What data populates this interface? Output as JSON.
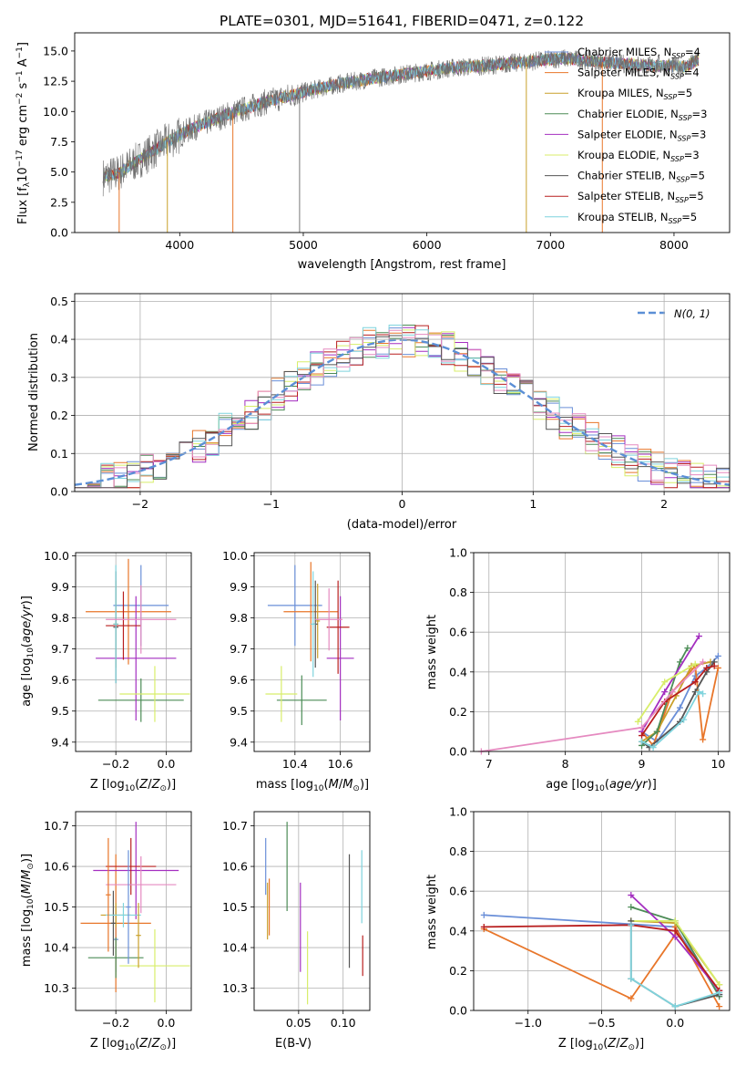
{
  "colors": {
    "Chabrier MILES": "#6a8fd8",
    "Salpeter MILES": "#e8762a",
    "Kroupa MILES": "#c9a02a",
    "Chabrier ELODIE": "#4c8c56",
    "Salpeter ELODIE": "#a42fc0",
    "Kroupa ELODIE": "#d8ee6a",
    "Chabrier STELIB": "#555555",
    "Salpeter STELIB": "#b81e1e",
    "Kroupa STELIB": "#7fd4dd",
    "normal_curve": "#5b8fd6",
    "pink": "#e58ac0"
  },
  "chart_data": [
    {
      "type": "line",
      "title": "PLATE=0301, MJD=51641, FIBERID=0471, z=0.122",
      "xlabel": "wavelength [Angstrom, rest frame]",
      "ylabel": "Flux [f$_\\lambda$10$^{-17}$ erg cm$^{-2}$ s$^{-1}$ A$^{-1}$]",
      "xlim": [
        3150,
        8450
      ],
      "ylim": [
        0,
        16.5
      ],
      "xticks": [
        "4000",
        "5000",
        "6000",
        "7000",
        "8000"
      ],
      "yticks": [
        "0.0",
        "2.5",
        "5.0",
        "7.5",
        "10.0",
        "12.5",
        "15.0"
      ],
      "legend_position": "right",
      "series": [
        {
          "name": "Chabrier MILES, N$_{SSP}$=4"
        },
        {
          "name": "Salpeter MILES, N$_{SSP}$=4"
        },
        {
          "name": "Kroupa MILES, N$_{SSP}$=5"
        },
        {
          "name": "Chabrier ELODIE, N$_{SSP}$=3"
        },
        {
          "name": "Salpeter ELODIE, N$_{SSP}$=3"
        },
        {
          "name": "Kroupa ELODIE, N$_{SSP}$=3"
        },
        {
          "name": "Chabrier STELIB, N$_{SSP}$=5"
        },
        {
          "name": "Salpeter STELIB, N$_{SSP}$=5"
        },
        {
          "name": "Kroupa STELIB, N$_{SSP}$=5"
        }
      ],
      "continuum": {
        "x": [
          3380,
          3500,
          3700,
          3900,
          4100,
          4400,
          4700,
          5000,
          5300,
          5600,
          5900,
          6200,
          6500,
          6800,
          7100,
          7300,
          7500,
          7800,
          8100,
          8200
        ],
        "y": [
          4.6,
          4.9,
          6.2,
          7.5,
          8.6,
          9.8,
          10.8,
          11.6,
          12.3,
          12.8,
          13.2,
          13.6,
          13.8,
          14.1,
          14.4,
          14.2,
          14.0,
          13.8,
          13.7,
          14.3
        ]
      }
    },
    {
      "type": "line",
      "xlabel": "(data-model)/error",
      "ylabel": "Normed distribution",
      "xlim": [
        -2.5,
        2.5
      ],
      "ylim": [
        0,
        0.52
      ],
      "xticks": [
        "−2",
        "−1",
        "0",
        "1",
        "2"
      ],
      "yticks": [
        "0.0",
        "0.1",
        "0.2",
        "0.3",
        "0.4",
        "0.5"
      ],
      "grid": true,
      "legend_position": "top-right",
      "legend": "$\\mathcal{N}(0,1)$",
      "bin_width": 0.1
    },
    {
      "type": "scatter",
      "xlabel": "Z [log$_{10}$($Z/Z_\\odot$)]",
      "ylabel": "age  [log$_{10}$($age/yr$)]",
      "xlim": [
        -0.36,
        0.1
      ],
      "ylim": [
        9.37,
        10.01
      ],
      "xticks": [
        "−0.2",
        "0.0"
      ],
      "yticks": [
        "9.4",
        "9.5",
        "9.6",
        "9.7",
        "9.8",
        "9.9",
        "10.0"
      ],
      "series": [
        {
          "x": -0.1,
          "xerr": 0.11,
          "y": 9.84,
          "yerr": 0.13
        },
        {
          "x": -0.15,
          "xerr": 0.17,
          "y": 9.82,
          "yerr": 0.17
        },
        {
          "x": -0.2,
          "xerr": 0.01,
          "y": 9.78,
          "yerr": 0.14
        },
        {
          "x": -0.1,
          "xerr": 0.17,
          "y": 9.535,
          "yerr": 0.07
        },
        {
          "x": -0.12,
          "xerr": 0.16,
          "y": 9.67,
          "yerr": 0.2
        },
        {
          "x": -0.045,
          "xerr": 0.14,
          "y": 9.555,
          "yerr": 0.09
        },
        {
          "x": -0.2,
          "xerr": 0.01,
          "y": 9.77,
          "yerr": 0.18
        },
        {
          "x": -0.17,
          "xerr": 0.07,
          "y": 9.775,
          "yerr": 0.11
        },
        {
          "x": -0.2,
          "xerr": 0.01,
          "y": 9.78,
          "yerr": 0.19
        },
        {
          "x": -0.1,
          "xerr": 0.14,
          "y": 9.795,
          "yerr": 0.11
        }
      ]
    },
    {
      "type": "scatter",
      "xlabel": "mass [log$_{10}$($M/M_\\odot$)]",
      "xlim": [
        10.22,
        10.73
      ],
      "ylim": [
        9.37,
        10.01
      ],
      "xticks": [
        "10.4",
        "10.6"
      ],
      "yticks": [
        "9.4",
        "9.5",
        "9.6",
        "9.7",
        "9.8",
        "9.9",
        "10.0"
      ],
      "series": [
        {
          "x": 10.4,
          "xerr": 0.12,
          "y": 9.84,
          "yerr": 0.13
        },
        {
          "x": 10.47,
          "xerr": 0.12,
          "y": 9.82,
          "yerr": 0.16
        },
        {
          "x": 10.5,
          "xerr": 0.01,
          "y": 9.79,
          "yerr": 0.12
        },
        {
          "x": 10.43,
          "xerr": 0.11,
          "y": 9.535,
          "yerr": 0.08
        },
        {
          "x": 10.6,
          "xerr": 0.06,
          "y": 9.67,
          "yerr": 0.2
        },
        {
          "x": 10.34,
          "xerr": 0.07,
          "y": 9.555,
          "yerr": 0.09
        },
        {
          "x": 10.49,
          "xerr": 0.01,
          "y": 9.78,
          "yerr": 0.14
        },
        {
          "x": 10.59,
          "xerr": 0.05,
          "y": 9.77,
          "yerr": 0.15
        },
        {
          "x": 10.48,
          "xerr": 0.01,
          "y": 9.78,
          "yerr": 0.17
        },
        {
          "x": 10.55,
          "xerr": 0.06,
          "y": 9.795,
          "yerr": 0.1
        }
      ]
    },
    {
      "type": "line",
      "xlabel": "age  [log$_{10}$($age/yr$)]",
      "ylabel": "mass weight",
      "xlim": [
        6.8,
        10.15
      ],
      "ylim": [
        0,
        1.0
      ],
      "xticks": [
        "7",
        "8",
        "9",
        "10"
      ],
      "yticks": [
        "0.0",
        "0.2",
        "0.4",
        "0.6",
        "0.8",
        "1.0"
      ],
      "grid": true,
      "series": [
        {
          "x": [
            9.0,
            9.2,
            9.5,
            9.7,
            9.85,
            10.0
          ],
          "y": [
            0.1,
            0.05,
            0.22,
            0.38,
            0.42,
            0.48
          ]
        },
        {
          "x": [
            9.0,
            9.15,
            9.4,
            9.7,
            9.8,
            10.0
          ],
          "y": [
            0.1,
            0.03,
            0.3,
            0.43,
            0.06,
            0.42
          ]
        },
        {
          "x": [
            9.0,
            9.2,
            9.45,
            9.65,
            9.9
          ],
          "y": [
            0.05,
            0.1,
            0.28,
            0.43,
            0.45
          ]
        },
        {
          "x": [
            9.0,
            9.2,
            9.5,
            9.6
          ],
          "y": [
            0.03,
            0.1,
            0.45,
            0.52
          ]
        },
        {
          "x": [
            9.0,
            9.3,
            9.75
          ],
          "y": [
            0.1,
            0.3,
            0.58
          ]
        },
        {
          "x": [
            8.95,
            9.3,
            9.7
          ],
          "y": [
            0.15,
            0.35,
            0.44
          ]
        },
        {
          "x": [
            9.0,
            9.1,
            9.5,
            9.7,
            9.85,
            9.95
          ],
          "y": [
            0.05,
            0.02,
            0.15,
            0.3,
            0.4,
            0.45
          ]
        },
        {
          "x": [
            9.0,
            9.3,
            9.7,
            9.85,
            9.95
          ],
          "y": [
            0.08,
            0.25,
            0.35,
            0.42,
            0.43
          ]
        },
        {
          "x": [
            9.0,
            9.15,
            9.55,
            9.75,
            9.8
          ],
          "y": [
            0.05,
            0.02,
            0.16,
            0.3,
            0.29
          ]
        },
        {
          "x": [
            6.9,
            9.0,
            9.4,
            9.8
          ],
          "y": [
            0.0,
            0.12,
            0.3,
            0.45
          ]
        }
      ]
    },
    {
      "type": "scatter",
      "xlabel": "Z [log$_{10}$($Z/Z_\\odot$)]",
      "ylabel": "mass [log$_{10}$($M/M_\\odot$)]",
      "xlim": [
        -0.36,
        0.1
      ],
      "ylim": [
        10.245,
        10.735
      ],
      "xticks": [
        "−0.2",
        "0.0"
      ],
      "yticks": [
        "10.3",
        "10.4",
        "10.5",
        "10.6",
        "10.7"
      ],
      "series": [
        {
          "x": -0.2,
          "xerr": 0.01,
          "y": 10.42,
          "yerr": 0.08
        },
        {
          "x": -0.2,
          "xerr": 0.14,
          "y": 10.46,
          "yerr": 0.17
        },
        {
          "x": -0.2,
          "xerr": 0.06,
          "y": 10.48,
          "yerr": 0.03
        },
        {
          "x": -0.2,
          "xerr": 0.11,
          "y": 10.375,
          "yerr": 0.05
        },
        {
          "x": -0.12,
          "xerr": 0.17,
          "y": 10.59,
          "yerr": 0.12
        },
        {
          "x": -0.045,
          "xerr": 0.14,
          "y": 10.355,
          "yerr": 0.09
        },
        {
          "x": -0.21,
          "xerr": 0.01,
          "y": 10.46,
          "yerr": 0.08
        },
        {
          "x": -0.14,
          "xerr": 0.1,
          "y": 10.6,
          "yerr": 0.07
        },
        {
          "x": -0.17,
          "xerr": 0.07,
          "y": 10.48,
          "yerr": 0.03
        },
        {
          "x": -0.1,
          "xerr": 0.14,
          "y": 10.555,
          "yerr": 0.07
        },
        {
          "x": -0.15,
          "xerr": 0.01,
          "y": 10.5,
          "yerr": 0.14
        },
        {
          "x": -0.23,
          "xerr": 0.01,
          "y": 10.53,
          "yerr": 0.14
        },
        {
          "x": -0.11,
          "xerr": 0.01,
          "y": 10.43,
          "yerr": 0.08
        }
      ]
    },
    {
      "type": "scatter",
      "xlabel": "E(B-V)",
      "xlim": [
        0.0,
        0.13
      ],
      "ylim": [
        10.245,
        10.735
      ],
      "xticks": [
        "0.05",
        "0.10"
      ],
      "yticks": [
        "10.3",
        "10.4",
        "10.5",
        "10.6",
        "10.7"
      ],
      "series": [
        {
          "x": 0.013,
          "y": 10.6,
          "yerr": 0.07
        },
        {
          "x": 0.017,
          "y": 10.5,
          "yerr": 0.07
        },
        {
          "x": 0.015,
          "y": 10.49,
          "yerr": 0.07
        },
        {
          "x": 0.037,
          "y": 10.6,
          "yerr": 0.11
        },
        {
          "x": 0.052,
          "y": 10.45,
          "yerr": 0.11
        },
        {
          "x": 0.06,
          "y": 10.35,
          "yerr": 0.09
        },
        {
          "x": 0.107,
          "y": 10.49,
          "yerr": 0.14
        },
        {
          "x": 0.122,
          "y": 10.38,
          "yerr": 0.05
        },
        {
          "x": 0.121,
          "y": 10.55,
          "yerr": 0.09
        }
      ]
    },
    {
      "type": "line",
      "xlabel": "Z [log$_{10}$($Z/Z_\\odot$)]",
      "ylabel": "mass weight",
      "xlim": [
        -1.37,
        0.37
      ],
      "ylim": [
        0,
        1.0
      ],
      "xticks": [
        "−1.0",
        "−0.5",
        "0.0"
      ],
      "yticks": [
        "0.0",
        "0.2",
        "0.4",
        "0.6",
        "0.8",
        "1.0"
      ],
      "grid": true,
      "series": [
        {
          "x": [
            -1.3,
            0.0,
            0.3
          ],
          "y": [
            0.48,
            0.42,
            0.08
          ]
        },
        {
          "x": [
            -1.3,
            -0.3,
            0.0,
            0.0,
            0.3
          ],
          "y": [
            0.41,
            0.06,
            0.38,
            0.42,
            0.02
          ]
        },
        {
          "x": [
            -0.3,
            0.0,
            0.3
          ],
          "y": [
            0.45,
            0.44,
            0.13
          ]
        },
        {
          "x": [
            -0.3,
            0.0,
            0.3
          ],
          "y": [
            0.52,
            0.45,
            0.07
          ]
        },
        {
          "x": [
            -0.3,
            0.0,
            0.3
          ],
          "y": [
            0.58,
            0.37,
            0.1
          ]
        },
        {
          "x": [
            -0.3,
            0.0,
            0.3
          ],
          "y": [
            0.45,
            0.45,
            0.13
          ]
        },
        {
          "x": [
            -0.3,
            -0.3,
            0.0,
            0.3
          ],
          "y": [
            0.45,
            0.16,
            0.02,
            0.08
          ]
        },
        {
          "x": [
            -1.3,
            -0.3,
            0.0,
            0.3
          ],
          "y": [
            0.42,
            0.43,
            0.4,
            0.1
          ]
        },
        {
          "x": [
            -0.3,
            -0.3,
            0.0,
            0.3
          ],
          "y": [
            0.43,
            0.16,
            0.02,
            0.09
          ]
        }
      ]
    }
  ]
}
